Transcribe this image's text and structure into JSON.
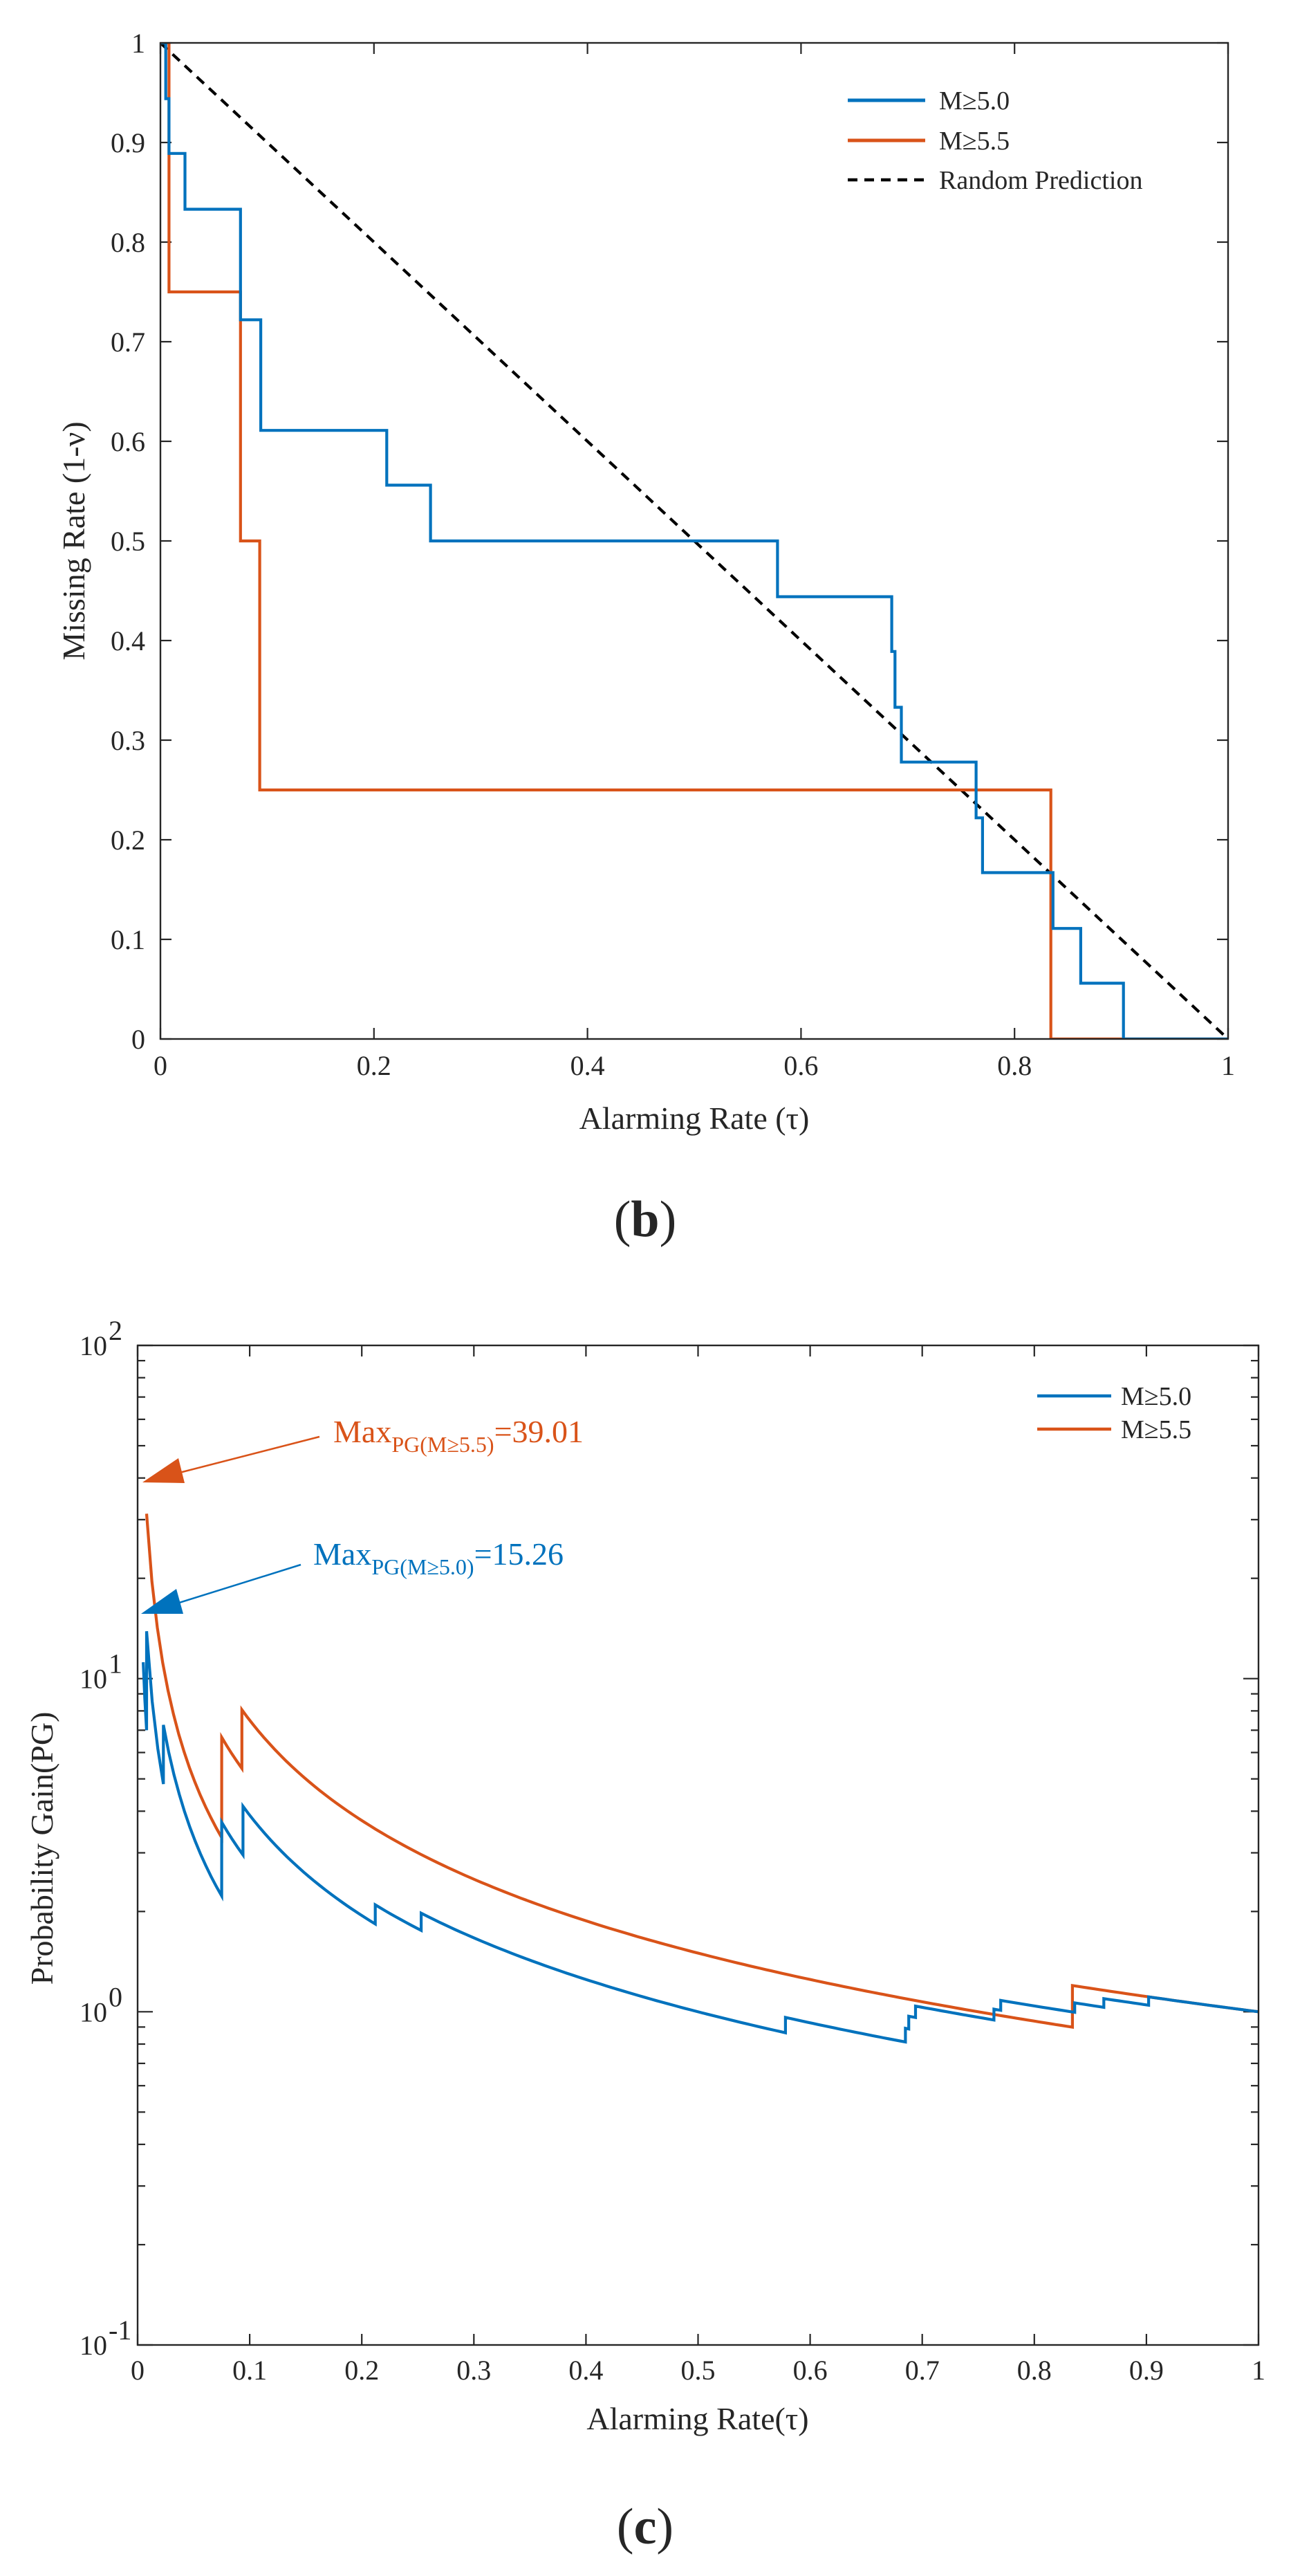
{
  "figure_panels": [
    {
      "letter_open": "(",
      "letter": "b",
      "letter_close": ")"
    },
    {
      "letter_open": "(",
      "letter": "c",
      "letter_close": ")"
    }
  ],
  "colors": {
    "m50": "#0072BD",
    "m55": "#D95319",
    "random": "#000000"
  },
  "chart_data": [
    {
      "type": "line",
      "panel": "b",
      "xlabel": "Alarming Rate (τ)",
      "ylabel": "Missing Rate (1-ν)",
      "xlim": [
        0,
        1
      ],
      "ylim": [
        0,
        1
      ],
      "xticks": [
        0,
        0.2,
        0.4,
        0.6,
        0.8,
        1
      ],
      "xtick_labels": [
        "0",
        "0.2",
        "0.4",
        "0.6",
        "0.8",
        "1"
      ],
      "yticks": [
        0,
        0.1,
        0.2,
        0.3,
        0.4,
        0.5,
        0.6,
        0.7,
        0.8,
        0.9,
        1
      ],
      "ytick_labels": [
        "0",
        "0.1",
        "0.2",
        "0.3",
        "0.4",
        "0.5",
        "0.6",
        "0.7",
        "0.8",
        "0.9",
        "1"
      ],
      "legend_position": "top-right",
      "series": [
        {
          "name": "M≥5.0",
          "color": "#0072BD",
          "style": "solid",
          "x": [
            0,
            0.005,
            0.005,
            0.008,
            0.008,
            0.023,
            0.023,
            0.075,
            0.075,
            0.094,
            0.094,
            0.212,
            0.212,
            0.253,
            0.253,
            0.578,
            0.578,
            0.685,
            0.685,
            0.688,
            0.688,
            0.694,
            0.694,
            0.764,
            0.764,
            0.77,
            0.77,
            0.836,
            0.836,
            0.862,
            0.862,
            0.902,
            0.902,
            1
          ],
          "y": [
            1,
            1,
            0.944,
            0.944,
            0.889,
            0.889,
            0.833,
            0.833,
            0.722,
            0.722,
            0.611,
            0.611,
            0.556,
            0.556,
            0.5,
            0.5,
            0.444,
            0.444,
            0.389,
            0.389,
            0.333,
            0.333,
            0.278,
            0.278,
            0.222,
            0.222,
            0.167,
            0.167,
            0.111,
            0.111,
            0.056,
            0.056,
            0,
            0
          ]
        },
        {
          "name": "M≥5.5",
          "color": "#D95319",
          "style": "solid",
          "x": [
            0,
            0.008,
            0.008,
            0.075,
            0.075,
            0.093,
            0.093,
            0.834,
            0.834,
            1
          ],
          "y": [
            1,
            1,
            0.75,
            0.75,
            0.5,
            0.5,
            0.25,
            0.25,
            0,
            0
          ]
        },
        {
          "name": "Random Prediction",
          "color": "#000000",
          "style": "dashed",
          "x": [
            0,
            1
          ],
          "y": [
            1,
            0
          ]
        }
      ]
    },
    {
      "type": "line",
      "panel": "c",
      "xlabel": "Alarming Rate(τ)",
      "ylabel": "Probability Gain(PG)",
      "xlim": [
        0,
        1
      ],
      "yscale": "log",
      "ylim": [
        0.1,
        100
      ],
      "xticks": [
        0,
        0.1,
        0.2,
        0.3,
        0.4,
        0.5,
        0.6,
        0.7,
        0.8,
        0.9,
        1
      ],
      "xtick_labels": [
        "0",
        "0.1",
        "0.2",
        "0.3",
        "0.4",
        "0.5",
        "0.6",
        "0.7",
        "0.8",
        "0.9",
        "1"
      ],
      "yticks": [
        0.1,
        1,
        10,
        100
      ],
      "ytick_base": [
        "10",
        "10",
        "10",
        "10"
      ],
      "ytick_exp": [
        "-1",
        "0",
        "1",
        "2"
      ],
      "legend_position": "top-right",
      "series": [
        {
          "name": "M≥5.0",
          "color": "#0072BD",
          "style": "solid"
        },
        {
          "name": "M≥5.5",
          "color": "#D95319",
          "style": "solid"
        }
      ],
      "annotations": [
        {
          "series": "M≥5.5",
          "label_base": "Max",
          "label_sub": "PG(M≥5.5)",
          "label_value": "=39.01",
          "x": 0.005,
          "y": 39.01,
          "color": "#D95319"
        },
        {
          "series": "M≥5.0",
          "label_base": "Max",
          "label_sub": "PG(M≥5.0)",
          "label_value": "=15.26",
          "x": 0.005,
          "y": 15.26,
          "color": "#0072BD"
        }
      ]
    }
  ]
}
